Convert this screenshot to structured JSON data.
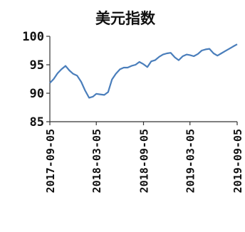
{
  "chart_data": {
    "type": "line",
    "title": "美元指数",
    "xlabel": "",
    "ylabel": "",
    "ylim": [
      85,
      100
    ],
    "yticks": [
      "100",
      "95",
      "90",
      "85"
    ],
    "grid": false,
    "legend": "none",
    "x_tick_labels": [
      "2017-09-05",
      "2018-03-05",
      "2018-09-05",
      "2019-03-05",
      "2019-09-05"
    ],
    "series": [
      {
        "color": "#4a7ebb",
        "x": [
          "2017-09-05",
          "2017-09-20",
          "2017-10-05",
          "2017-10-20",
          "2017-11-05",
          "2017-11-20",
          "2017-12-05",
          "2017-12-20",
          "2018-01-05",
          "2018-01-20",
          "2018-02-05",
          "2018-02-20",
          "2018-03-05",
          "2018-03-20",
          "2018-04-05",
          "2018-04-20",
          "2018-05-05",
          "2018-05-20",
          "2018-06-05",
          "2018-06-20",
          "2018-07-05",
          "2018-07-20",
          "2018-08-05",
          "2018-08-20",
          "2018-09-05",
          "2018-09-20",
          "2018-10-05",
          "2018-10-20",
          "2018-11-05",
          "2018-11-20",
          "2018-12-05",
          "2018-12-20",
          "2019-01-05",
          "2019-01-20",
          "2019-02-05",
          "2019-02-20",
          "2019-03-05",
          "2019-03-20",
          "2019-04-05",
          "2019-04-20",
          "2019-05-05",
          "2019-05-20",
          "2019-06-05",
          "2019-06-20",
          "2019-07-05",
          "2019-07-20",
          "2019-08-05",
          "2019-08-20",
          "2019-09-05"
        ],
        "values": [
          91.8,
          92.5,
          93.5,
          94.2,
          94.8,
          94.0,
          93.4,
          93.1,
          92.0,
          90.5,
          89.2,
          89.4,
          89.9,
          89.8,
          89.7,
          90.2,
          92.4,
          93.4,
          94.2,
          94.5,
          94.5,
          94.8,
          95.0,
          95.5,
          95.1,
          94.6,
          95.6,
          95.8,
          96.4,
          96.8,
          97.0,
          97.1,
          96.3,
          95.8,
          96.5,
          96.8,
          96.7,
          96.5,
          96.9,
          97.5,
          97.7,
          97.8,
          97.0,
          96.6,
          97.0,
          97.4,
          97.8,
          98.2,
          98.6
        ]
      }
    ]
  }
}
